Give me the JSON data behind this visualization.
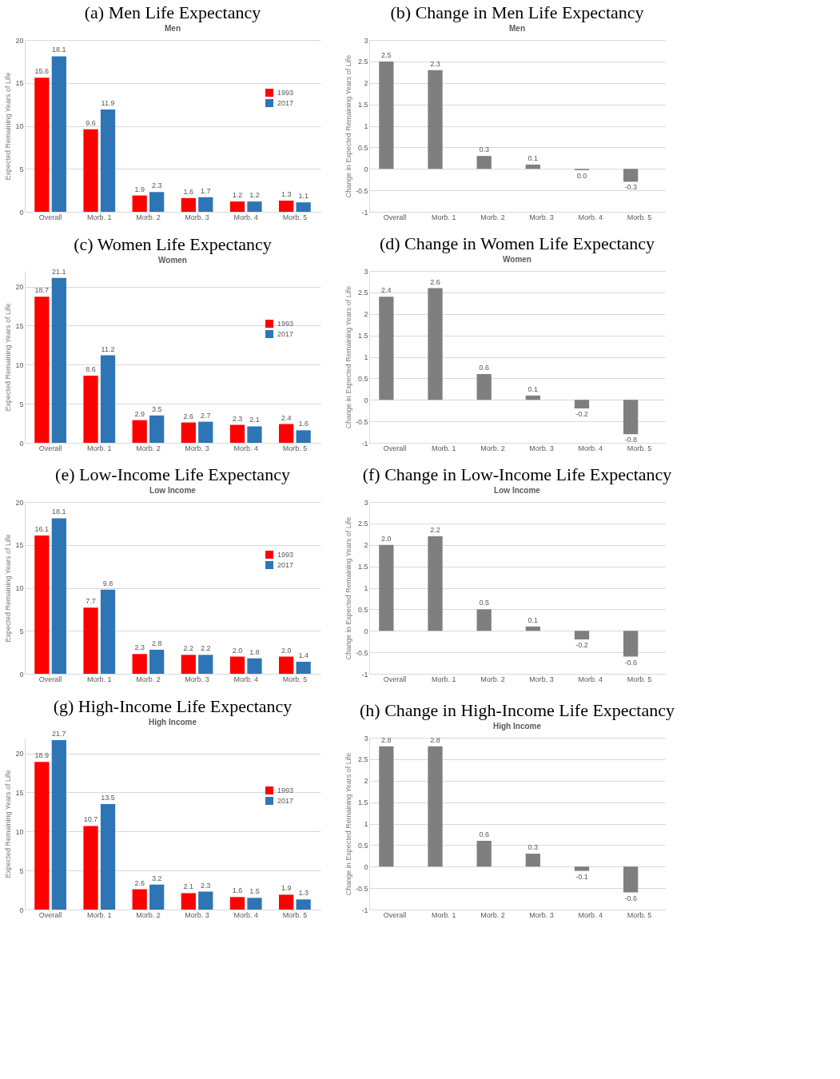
{
  "chart_data": [
    {
      "type": "bar",
      "title": "(a) Men Life Expectancy",
      "subtitle": "Men",
      "ylabel": "Expected Remaining Years of Life",
      "categories": [
        "Overall",
        "Morb. 1",
        "Morb. 2",
        "Morb. 3",
        "Morb. 4",
        "Morb. 5"
      ],
      "series": [
        {
          "name": "1993",
          "color": "#ff0000",
          "values": [
            15.6,
            9.6,
            1.9,
            1.6,
            1.2,
            1.3
          ]
        },
        {
          "name": "2017",
          "color": "#2e75b6",
          "values": [
            18.1,
            11.9,
            2.3,
            1.7,
            1.2,
            1.1
          ]
        }
      ],
      "ylim": [
        0,
        20
      ],
      "yticks": [
        0,
        5,
        10,
        15,
        20
      ],
      "grid": "y",
      "legend": "top right",
      "data_labels": true
    },
    {
      "type": "bar",
      "title": "(b) Change in Men Life Expectancy",
      "subtitle": "Men",
      "ylabel": "Change in Expected Remaining Years of Life",
      "categories": [
        "Overall",
        "Morb. 1",
        "Morb. 2",
        "Morb. 3",
        "Morb. 4",
        "Morb. 5"
      ],
      "series": [
        {
          "color": "#7f7f7f",
          "values": [
            2.5,
            2.3,
            0.3,
            0.1,
            -0.03,
            -0.3
          ],
          "value_labels": [
            "2.5",
            "2.3",
            "0.3",
            "0.1",
            "0.0",
            "-0.3"
          ]
        }
      ],
      "ylim": [
        -1,
        3
      ],
      "yticks": [
        -1,
        -0.5,
        0,
        0.5,
        1,
        1.5,
        2,
        2.5,
        3
      ],
      "grid": "y"
    },
    {
      "type": "bar",
      "title": "(c) Women Life Expectancy",
      "subtitle": "Women",
      "ylabel": "Expected Remaining Years of Life",
      "categories": [
        "Overall",
        "Morb. 1",
        "Morb. 2",
        "Morb. 3",
        "Morb. 4",
        "Morb. 5"
      ],
      "series": [
        {
          "name": "1993",
          "color": "#ff0000",
          "values": [
            18.7,
            8.6,
            2.9,
            2.6,
            2.3,
            2.4
          ]
        },
        {
          "name": "2017",
          "color": "#2e75b6",
          "values": [
            21.1,
            11.2,
            3.5,
            2.7,
            2.1,
            1.6
          ]
        }
      ],
      "ylim": [
        0,
        22
      ],
      "yticks": [
        0,
        5,
        10,
        15,
        20
      ],
      "grid": "y",
      "legend": "top right",
      "data_labels": true
    },
    {
      "type": "bar",
      "title": "(d) Change in Women Life Expectancy",
      "subtitle": "Women",
      "ylabel": "Change in Expected Remaining Years of Life",
      "categories": [
        "Overall",
        "Morb. 1",
        "Morb. 2",
        "Morb. 3",
        "Morb. 4",
        "Morb. 5"
      ],
      "series": [
        {
          "color": "#7f7f7f",
          "values": [
            2.4,
            2.6,
            0.6,
            0.1,
            -0.2,
            -0.8
          ]
        }
      ],
      "ylim": [
        -1,
        3
      ],
      "yticks": [
        -1,
        -0.5,
        0,
        0.5,
        1,
        1.5,
        2,
        2.5,
        3
      ],
      "grid": "y",
      "data_labels": true
    },
    {
      "type": "bar",
      "title": "(e) Low-Income Life Expectancy",
      "subtitle": "Low Income",
      "ylabel": "Expected Remaining Years of Life",
      "categories": [
        "Overall",
        "Morb. 1",
        "Morb. 2",
        "Morb. 3",
        "Morb. 4",
        "Morb. 5"
      ],
      "series": [
        {
          "name": "1993",
          "color": "#ff0000",
          "values": [
            16.1,
            7.7,
            2.3,
            2.2,
            2.0,
            2.0
          ],
          "value_labels": [
            "16.1",
            "7.7",
            "2.3",
            "2.2",
            "2.0",
            "2.0"
          ]
        },
        {
          "name": "2017",
          "color": "#2e75b6",
          "values": [
            18.1,
            9.8,
            2.8,
            2.2,
            1.8,
            1.4
          ]
        }
      ],
      "ylim": [
        0,
        20
      ],
      "yticks": [
        0,
        5,
        10,
        15,
        20
      ],
      "grid": "y",
      "legend": "top right",
      "data_labels": true
    },
    {
      "type": "bar",
      "title": "(f) Change in Low-Income Life Expectancy",
      "subtitle": "Low Income",
      "ylabel": "Change in Expected Remaining Years of Life",
      "categories": [
        "Overall",
        "Morb. 1",
        "Morb. 2",
        "Morb. 3",
        "Morb. 4",
        "Morb. 5"
      ],
      "series": [
        {
          "color": "#7f7f7f",
          "values": [
            2.0,
            2.2,
            0.5,
            0.1,
            -0.2,
            -0.6
          ],
          "value_labels": [
            "2.0",
            "2.2",
            "0.5",
            "0.1",
            "-0.2",
            "-0.6"
          ]
        }
      ],
      "ylim": [
        -1,
        3
      ],
      "yticks": [
        -1,
        -0.5,
        0,
        0.5,
        1,
        1.5,
        2,
        2.5,
        3
      ],
      "grid": "y",
      "data_labels": true
    },
    {
      "type": "bar",
      "title": "(g) High-Income Life Expectancy",
      "subtitle": "High Income",
      "ylabel": "Expected Remaining Years of Life",
      "categories": [
        "Overall",
        "Morb. 1",
        "Morb. 2",
        "Morb. 3",
        "Morb. 4",
        "Morb. 5"
      ],
      "series": [
        {
          "name": "1993",
          "color": "#ff0000",
          "values": [
            18.9,
            10.7,
            2.6,
            2.1,
            1.6,
            1.9
          ]
        },
        {
          "name": "2017",
          "color": "#2e75b6",
          "values": [
            21.7,
            13.5,
            3.2,
            2.3,
            1.5,
            1.3
          ]
        }
      ],
      "ylim": [
        0,
        22
      ],
      "yticks": [
        0,
        5,
        10,
        15,
        20
      ],
      "grid": "y",
      "legend": "top right",
      "data_labels": true
    },
    {
      "type": "bar",
      "title": "(h) Change in High-Income Life Expectancy",
      "subtitle": "High Income",
      "ylabel": "Change in Expected Remaining Years of Life",
      "categories": [
        "Overall",
        "Morb. 1",
        "Morb. 2",
        "Morb. 3",
        "Morb. 4",
        "Morb. 5"
      ],
      "series": [
        {
          "color": "#7f7f7f",
          "values": [
            2.8,
            2.8,
            0.6,
            0.3,
            -0.1,
            -0.6
          ]
        }
      ],
      "ylim": [
        -1,
        3
      ],
      "yticks": [
        -1,
        -0.5,
        0,
        0.5,
        1,
        1.5,
        2,
        2.5,
        3
      ],
      "grid": "y",
      "data_labels": true
    }
  ]
}
